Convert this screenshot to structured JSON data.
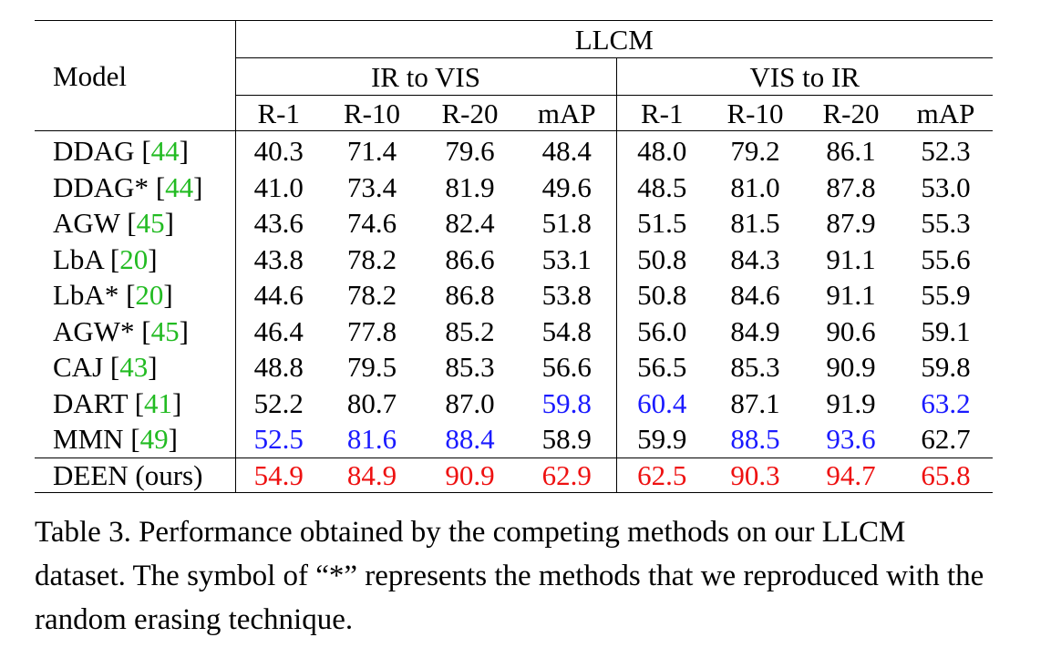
{
  "table": {
    "dataset_header": "LLCM",
    "model_header": "Model",
    "groups": [
      "IR to VIS",
      "VIS to IR"
    ],
    "metrics": [
      "R-1",
      "R-10",
      "R-20",
      "mAP",
      "R-1",
      "R-10",
      "R-20",
      "mAP"
    ],
    "rows": [
      {
        "name": "DDAG",
        "ref": "44",
        "suffix": "",
        "values": [
          "40.3",
          "71.4",
          "79.6",
          "48.4",
          "48.0",
          "79.2",
          "86.1",
          "52.3"
        ],
        "styles": [
          "",
          "",
          "",
          "",
          "",
          "",
          "",
          ""
        ]
      },
      {
        "name": "DDAG*",
        "ref": "44",
        "suffix": "",
        "values": [
          "41.0",
          "73.4",
          "81.9",
          "49.6",
          "48.5",
          "81.0",
          "87.8",
          "53.0"
        ],
        "styles": [
          "",
          "",
          "",
          "",
          "",
          "",
          "",
          ""
        ]
      },
      {
        "name": "AGW",
        "ref": "45",
        "suffix": "",
        "values": [
          "43.6",
          "74.6",
          "82.4",
          "51.8",
          "51.5",
          "81.5",
          "87.9",
          "55.3"
        ],
        "styles": [
          "",
          "",
          "",
          "",
          "",
          "",
          "",
          ""
        ]
      },
      {
        "name": "LbA",
        "ref": "20",
        "suffix": "",
        "values": [
          "43.8",
          "78.2",
          "86.6",
          "53.1",
          "50.8",
          "84.3",
          "91.1",
          "55.6"
        ],
        "styles": [
          "",
          "",
          "",
          "",
          "",
          "",
          "",
          ""
        ]
      },
      {
        "name": "LbA*",
        "ref": "20",
        "suffix": "",
        "values": [
          "44.6",
          "78.2",
          "86.8",
          "53.8",
          "50.8",
          "84.6",
          "91.1",
          "55.9"
        ],
        "styles": [
          "",
          "",
          "",
          "",
          "",
          "",
          "",
          ""
        ]
      },
      {
        "name": "AGW*",
        "ref": "45",
        "suffix": "",
        "values": [
          "46.4",
          "77.8",
          "85.2",
          "54.8",
          "56.0",
          "84.9",
          "90.6",
          "59.1"
        ],
        "styles": [
          "",
          "",
          "",
          "",
          "",
          "",
          "",
          ""
        ]
      },
      {
        "name": "CAJ",
        "ref": "43",
        "suffix": "",
        "values": [
          "48.8",
          "79.5",
          "85.3",
          "56.6",
          "56.5",
          "85.3",
          "90.9",
          "59.8"
        ],
        "styles": [
          "",
          "",
          "",
          "",
          "",
          "",
          "",
          ""
        ]
      },
      {
        "name": "DART",
        "ref": "41",
        "suffix": "",
        "values": [
          "52.2",
          "80.7",
          "87.0",
          "59.8",
          "60.4",
          "87.1",
          "91.9",
          "63.2"
        ],
        "styles": [
          "",
          "",
          "",
          "blue",
          "blue",
          "",
          "",
          "blue"
        ]
      },
      {
        "name": "MMN",
        "ref": "49",
        "suffix": "",
        "values": [
          "52.5",
          "81.6",
          "88.4",
          "58.9",
          "59.9",
          "88.5",
          "93.6",
          "62.7"
        ],
        "styles": [
          "blue",
          "blue",
          "blue",
          "",
          "",
          "blue",
          "blue",
          ""
        ]
      }
    ],
    "ours": {
      "name": "DEEN (ours)",
      "values": [
        "54.9",
        "84.9",
        "90.9",
        "62.9",
        "62.5",
        "90.3",
        "94.7",
        "65.8"
      ]
    }
  },
  "caption": {
    "text": "Table 3. Performance obtained by the competing methods on our LLCM dataset. The symbol of “*” represents the methods that we reproduced with the random erasing technique."
  },
  "colors": {
    "citation": "#22bb22",
    "second_best": "#1a1aff",
    "best": "#ee1111"
  }
}
